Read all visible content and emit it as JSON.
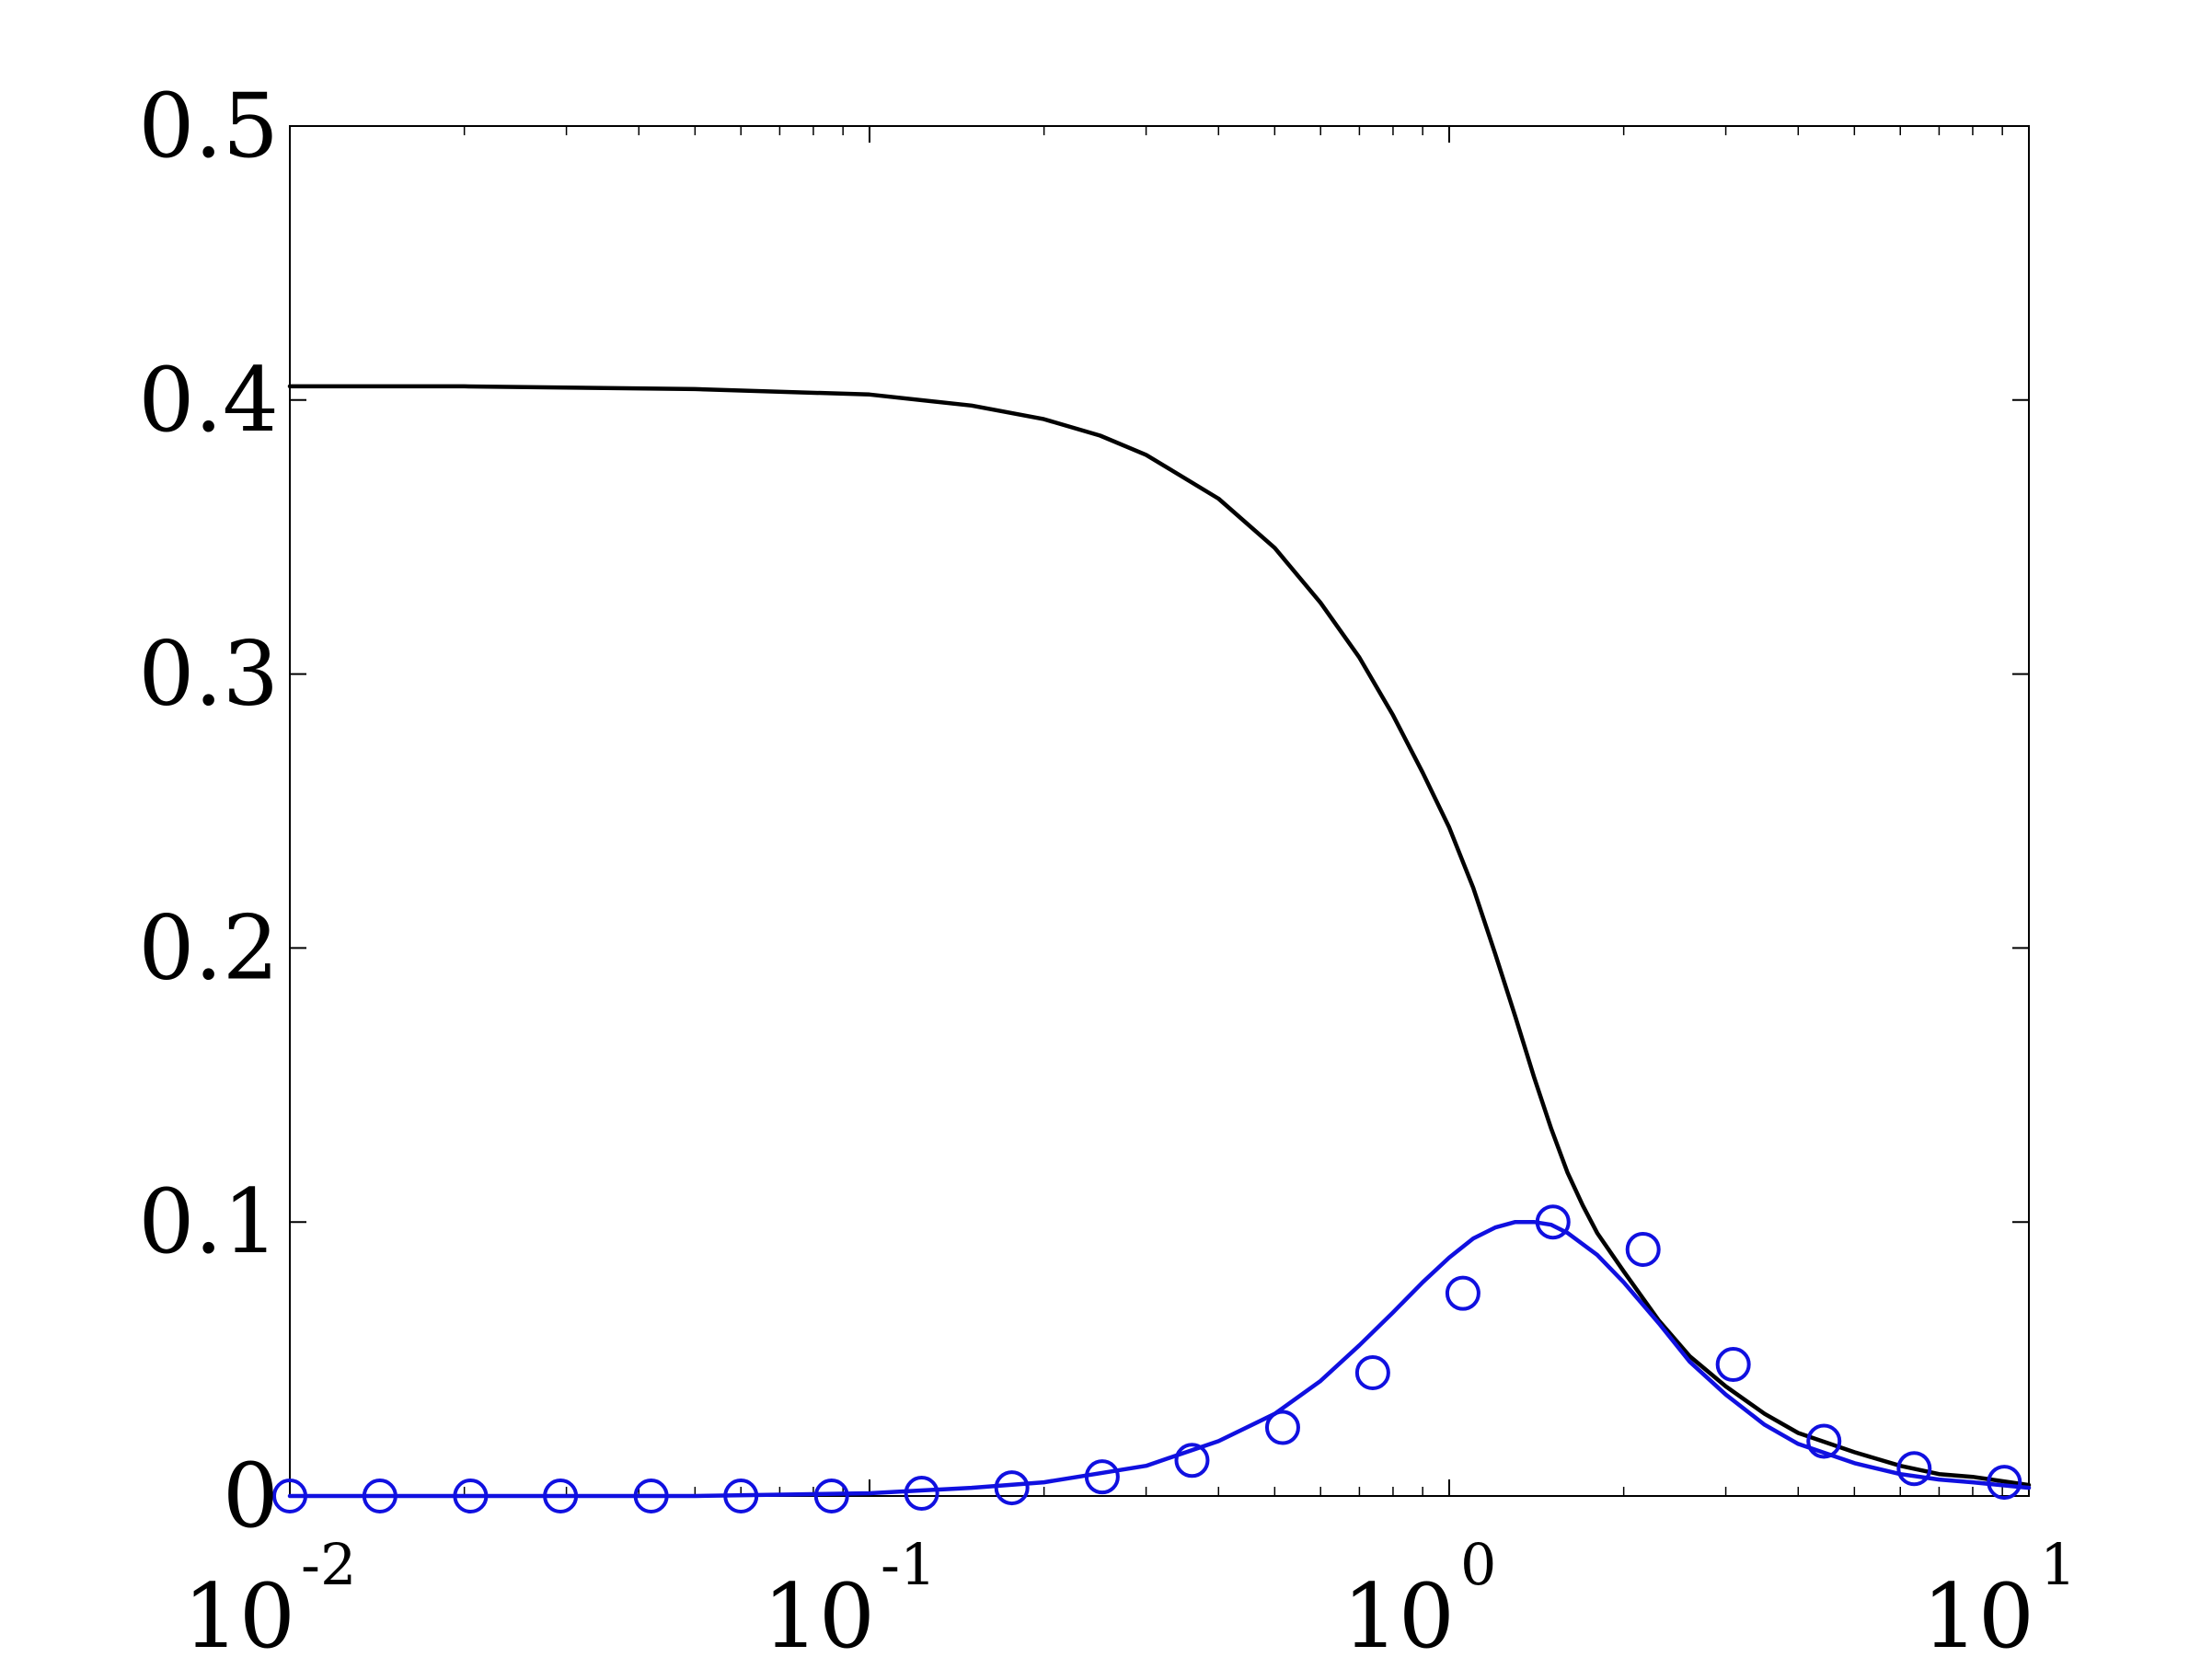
{
  "chart_data": {
    "type": "line",
    "title": "",
    "xlabel": "",
    "ylabel": "",
    "xscale": "log",
    "xlim": [
      0.01,
      10
    ],
    "ylim": [
      0,
      0.5
    ],
    "grid": false,
    "legend": "none",
    "x_ticks": [
      {
        "value": 0.01,
        "base": "10",
        "exp": "-2"
      },
      {
        "value": 0.1,
        "base": "10",
        "exp": "-1"
      },
      {
        "value": 1,
        "base": "10",
        "exp": "0"
      },
      {
        "value": 10,
        "base": "10",
        "exp": "1"
      }
    ],
    "y_ticks": [
      {
        "value": 0,
        "label": "0"
      },
      {
        "value": 0.1,
        "label": "0.1"
      },
      {
        "value": 0.2,
        "label": "0.2"
      },
      {
        "value": 0.3,
        "label": "0.3"
      },
      {
        "value": 0.4,
        "label": "0.4"
      },
      {
        "value": 0.5,
        "label": "0.5"
      }
    ],
    "series": [
      {
        "style": "solid-line",
        "color": "#000000",
        "x": [
          0.01,
          0.02,
          0.05,
          0.1,
          0.15,
          0.2,
          0.25,
          0.3,
          0.4,
          0.5,
          0.6,
          0.7,
          0.8,
          0.9,
          1.0,
          1.1,
          1.2,
          1.3,
          1.4,
          1.5,
          1.6,
          1.7,
          1.8,
          2.0,
          2.3,
          2.6,
          3.0,
          3.5,
          4.0,
          5.0,
          6.0,
          7.0,
          8.0,
          10.0
        ],
        "y": [
          0.405,
          0.405,
          0.404,
          0.402,
          0.398,
          0.393,
          0.387,
          0.38,
          0.364,
          0.346,
          0.326,
          0.306,
          0.285,
          0.264,
          0.244,
          0.222,
          0.198,
          0.175,
          0.153,
          0.134,
          0.118,
          0.106,
          0.096,
          0.082,
          0.064,
          0.051,
          0.04,
          0.03,
          0.023,
          0.016,
          0.011,
          0.008,
          0.007,
          0.004
        ]
      },
      {
        "style": "solid-line",
        "color": "#1010e0",
        "x": [
          0.01,
          0.05,
          0.1,
          0.15,
          0.2,
          0.3,
          0.4,
          0.5,
          0.6,
          0.7,
          0.8,
          0.9,
          1.0,
          1.1,
          1.2,
          1.3,
          1.4,
          1.5,
          1.6,
          1.8,
          2.0,
          2.3,
          2.6,
          3.0,
          3.5,
          4.0,
          5.0,
          6.0,
          7.0,
          8.0,
          10.0
        ],
        "y": [
          0.0,
          0.0,
          0.001,
          0.003,
          0.005,
          0.011,
          0.02,
          0.03,
          0.042,
          0.055,
          0.067,
          0.078,
          0.087,
          0.094,
          0.098,
          0.1,
          0.1,
          0.099,
          0.096,
          0.088,
          0.078,
          0.063,
          0.049,
          0.037,
          0.026,
          0.019,
          0.012,
          0.008,
          0.006,
          0.005,
          0.003
        ]
      },
      {
        "style": "circle-markers",
        "color": "#1010e0",
        "x": [
          0.01,
          0.0143,
          0.0205,
          0.0293,
          0.042,
          0.06,
          0.086,
          0.123,
          0.176,
          0.252,
          0.36,
          0.516,
          0.738,
          1.056,
          1.51,
          2.16,
          3.09,
          4.43,
          6.34,
          9.07
        ],
        "y": [
          0.0,
          0.0,
          0.0,
          0.0,
          0.0,
          0.0,
          0.0,
          0.001,
          0.003,
          0.007,
          0.013,
          0.025,
          0.045,
          0.074,
          0.1,
          0.09,
          0.048,
          0.02,
          0.01,
          0.005
        ]
      }
    ]
  }
}
